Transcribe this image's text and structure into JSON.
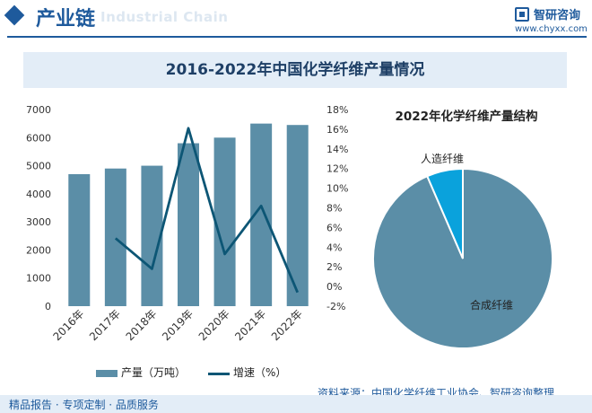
{
  "header": {
    "title": "产业链",
    "watermark": "Industrial Chain",
    "brand": "智研咨询",
    "url": "www.chyxx.com"
  },
  "main_title": "2016-2022年中国化学纤维产量情况",
  "pie_title": "2022年化学纤维产量结构",
  "legend": {
    "bar": "产量（万吨）",
    "line": "增速（%）"
  },
  "footer": {
    "left": "精品报告 · 专项定制 · 品质服务",
    "source": "资料来源：中国化学纤维工业协会、智研咨询整理"
  },
  "colors": {
    "bar": "#5b8ea7",
    "line": "#0d5675",
    "pie_main": "#5b8ea7",
    "pie_minor": "#0aa2dc",
    "brand": "#1e5a9c"
  },
  "chart_data": [
    {
      "type": "bar",
      "title": "2016-2022年中国化学纤维产量情况",
      "categories": [
        "2016年",
        "2017年",
        "2018年",
        "2019年",
        "2020年",
        "2021年",
        "2022年"
      ],
      "series": [
        {
          "name": "产量（万吨）",
          "type": "bar",
          "axis": "left",
          "values": [
            4700,
            4900,
            5000,
            5800,
            6000,
            6500,
            6450
          ]
        },
        {
          "name": "增速（%）",
          "type": "line",
          "axis": "right",
          "values": [
            null,
            4.9,
            1.8,
            16.1,
            3.3,
            8.2,
            -0.6
          ]
        }
      ],
      "ylim_left": [
        0,
        7000
      ],
      "yticks_left": [
        "0",
        "1000",
        "2000",
        "3000",
        "4000",
        "5000",
        "6000",
        "7000"
      ],
      "ylim_right": [
        -2,
        18
      ],
      "yticks_right": [
        "-2%",
        "0%",
        "2%",
        "4%",
        "6%",
        "8%",
        "10%",
        "12%",
        "14%",
        "16%",
        "18%"
      ]
    },
    {
      "type": "pie",
      "title": "2022年化学纤维产量结构",
      "labels": [
        "合成纤维",
        "人造纤维"
      ],
      "values": [
        93.5,
        6.5
      ]
    }
  ]
}
